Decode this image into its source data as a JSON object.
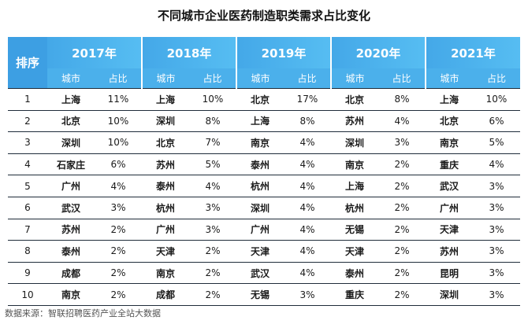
{
  "title": "不同城市企业医药制造职类需求占比变化",
  "source": "数据来源：智联招聘医药产业全站大数据",
  "chart_data": {
    "type": "table",
    "rank_header": "排序",
    "col_city": "城市",
    "col_share": "占比",
    "years": [
      "2017年",
      "2018年",
      "2019年",
      "2020年",
      "2021年"
    ],
    "ranks": [
      "1",
      "2",
      "3",
      "4",
      "5",
      "6",
      "7",
      "8",
      "9",
      "10"
    ],
    "rows": [
      [
        [
          "上海",
          "11%"
        ],
        [
          "上海",
          "10%"
        ],
        [
          "北京",
          "17%"
        ],
        [
          "北京",
          "8%"
        ],
        [
          "上海",
          "10%"
        ]
      ],
      [
        [
          "北京",
          "10%"
        ],
        [
          "深圳",
          "8%"
        ],
        [
          "上海",
          "8%"
        ],
        [
          "苏州",
          "4%"
        ],
        [
          "北京",
          "6%"
        ]
      ],
      [
        [
          "深圳",
          "10%"
        ],
        [
          "北京",
          "7%"
        ],
        [
          "南京",
          "4%"
        ],
        [
          "深圳",
          "3%"
        ],
        [
          "南京",
          "5%"
        ]
      ],
      [
        [
          "石家庄",
          "6%"
        ],
        [
          "苏州",
          "5%"
        ],
        [
          "泰州",
          "4%"
        ],
        [
          "南京",
          "2%"
        ],
        [
          "重庆",
          "4%"
        ]
      ],
      [
        [
          "广州",
          "4%"
        ],
        [
          "泰州",
          "4%"
        ],
        [
          "杭州",
          "4%"
        ],
        [
          "上海",
          "2%"
        ],
        [
          "武汉",
          "3%"
        ]
      ],
      [
        [
          "武汉",
          "3%"
        ],
        [
          "杭州",
          "3%"
        ],
        [
          "深圳",
          "4%"
        ],
        [
          "杭州",
          "2%"
        ],
        [
          "广州",
          "3%"
        ]
      ],
      [
        [
          "苏州",
          "2%"
        ],
        [
          "广州",
          "3%"
        ],
        [
          "广州",
          "4%"
        ],
        [
          "无锡",
          "2%"
        ],
        [
          "天津",
          "3%"
        ]
      ],
      [
        [
          "泰州",
          "2%"
        ],
        [
          "天津",
          "2%"
        ],
        [
          "天津",
          "4%"
        ],
        [
          "天津",
          "2%"
        ],
        [
          "苏州",
          "3%"
        ]
      ],
      [
        [
          "成都",
          "2%"
        ],
        [
          "南京",
          "2%"
        ],
        [
          "武汉",
          "4%"
        ],
        [
          "泰州",
          "2%"
        ],
        [
          "昆明",
          "3%"
        ]
      ],
      [
        [
          "南京",
          "2%"
        ],
        [
          "成都",
          "2%"
        ],
        [
          "无锡",
          "3%"
        ],
        [
          "重庆",
          "2%"
        ],
        [
          "深圳",
          "3%"
        ]
      ]
    ]
  }
}
